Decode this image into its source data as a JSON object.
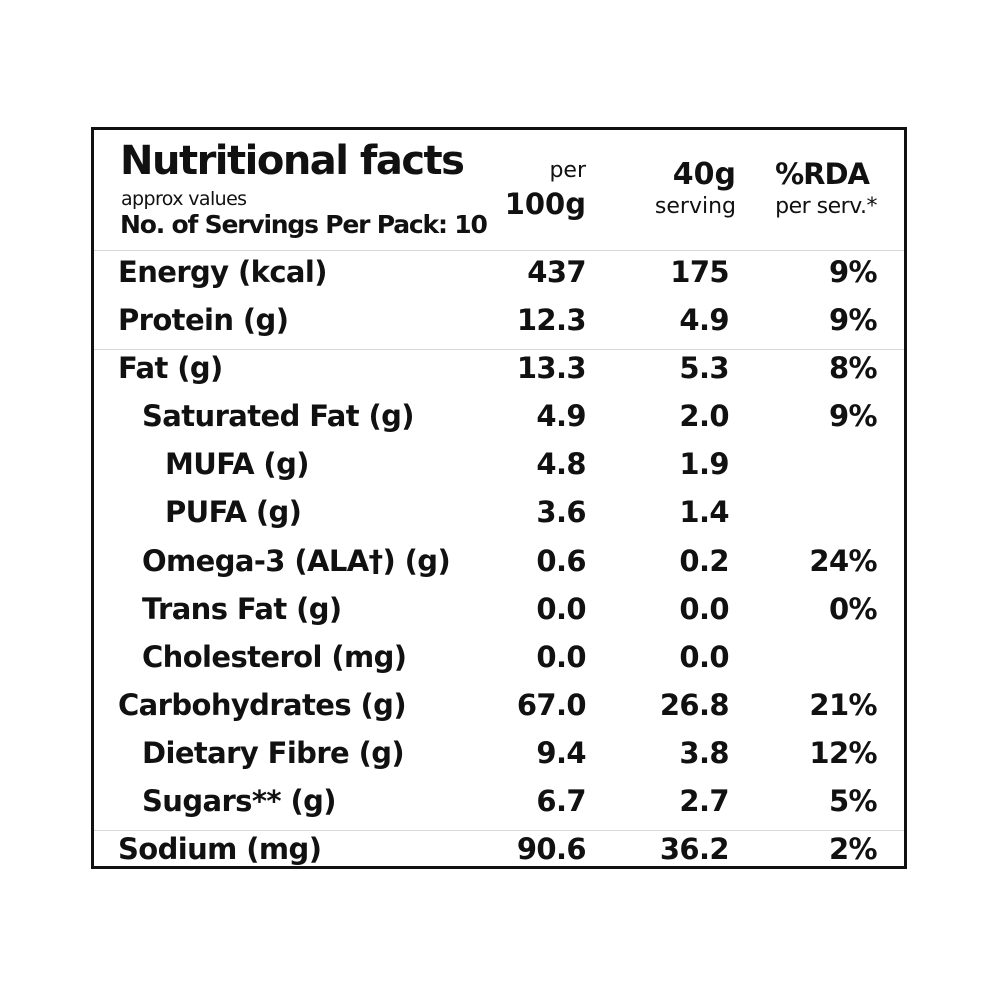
{
  "header": {
    "title": "Nutritional facts",
    "approx": "approx values",
    "servings": "No. of Servings Per Pack: 10",
    "col_per100_top": "per",
    "col_per100_bottom": "100g",
    "col_serving_top": "40g",
    "col_serving_bottom": "serving",
    "col_rda_top": "%RDA",
    "col_rda_bottom": "per serv.*"
  },
  "rows": [
    {
      "name": "Energy (kcal)",
      "per100": "437",
      "serving": "175",
      "rda": "9%"
    },
    {
      "name": "Protein (g)",
      "per100": "12.3",
      "serving": "4.9",
      "rda": "9%"
    },
    {
      "name": "Fat (g)",
      "per100": "13.3",
      "serving": "5.3",
      "rda": "8%"
    },
    {
      "name": "Saturated Fat (g)",
      "per100": "4.9",
      "serving": "2.0",
      "rda": "9%"
    },
    {
      "name": "MUFA (g)",
      "per100": "4.8",
      "serving": "1.9",
      "rda": ""
    },
    {
      "name": "PUFA (g)",
      "per100": "3.6",
      "serving": "1.4",
      "rda": ""
    },
    {
      "name": "Omega-3 (ALA†) (g)",
      "per100": "0.6",
      "serving": "0.2",
      "rda": "24%"
    },
    {
      "name": "Trans Fat (g)",
      "per100": "0.0",
      "serving": "0.0",
      "rda": "0%"
    },
    {
      "name": "Cholesterol (mg)",
      "per100": "0.0",
      "serving": "0.0",
      "rda": ""
    },
    {
      "name": "Carbohydrates (g)",
      "per100": "67.0",
      "serving": "26.8",
      "rda": "21%"
    },
    {
      "name": "Dietary Fibre (g)",
      "per100": "9.4",
      "serving": "3.8",
      "rda": "12%"
    },
    {
      "name": "Sugars** (g)",
      "per100": "6.7",
      "serving": "2.7",
      "rda": "5%"
    },
    {
      "name": "Sodium (mg)",
      "per100": "90.6",
      "serving": "36.2",
      "rda": "2%"
    }
  ]
}
